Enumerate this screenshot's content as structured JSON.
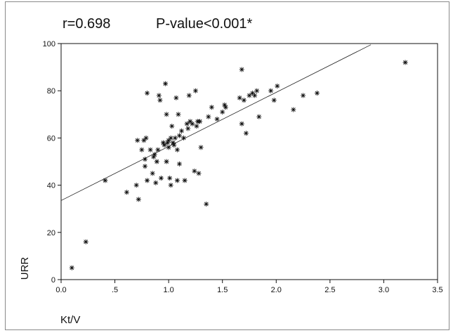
{
  "chart_data": {
    "type": "scatter",
    "annotations": [
      "r=0.698",
      "P-value<0.001*"
    ],
    "xlabel": "Kt/V",
    "ylabel": "URR",
    "xlim": [
      0.0,
      3.5
    ],
    "ylim": [
      0,
      100
    ],
    "x_ticks": [
      0.0,
      0.5,
      1.0,
      1.5,
      2.0,
      2.5,
      3.0,
      3.5
    ],
    "x_tick_labels": [
      "0.0",
      ".5",
      "1.0",
      "1.5",
      "2.0",
      "2.5",
      "3.0",
      "3.5"
    ],
    "y_ticks": [
      0,
      20,
      40,
      60,
      80,
      100
    ],
    "y_tick_labels": [
      "0",
      "20",
      "40",
      "60",
      "80",
      "100"
    ],
    "marker": "asterisk",
    "grid": false,
    "regression_line": {
      "x": [
        0.0,
        2.88
      ],
      "y": [
        33.5,
        99.5
      ]
    },
    "series": [
      {
        "points": [
          [
            0.1,
            5
          ],
          [
            0.23,
            16
          ],
          [
            0.41,
            42
          ],
          [
            0.61,
            37
          ],
          [
            0.7,
            40
          ],
          [
            0.71,
            59
          ],
          [
            0.72,
            34
          ],
          [
            0.75,
            55
          ],
          [
            0.77,
            59
          ],
          [
            0.78,
            51
          ],
          [
            0.78,
            48
          ],
          [
            0.79,
            60
          ],
          [
            0.8,
            79
          ],
          [
            0.8,
            42
          ],
          [
            0.83,
            55
          ],
          [
            0.85,
            45
          ],
          [
            0.86,
            52
          ],
          [
            0.87,
            53
          ],
          [
            0.88,
            41
          ],
          [
            0.89,
            50
          ],
          [
            0.9,
            55
          ],
          [
            0.91,
            78
          ],
          [
            0.92,
            76
          ],
          [
            0.93,
            43
          ],
          [
            0.95,
            58
          ],
          [
            0.96,
            57
          ],
          [
            0.97,
            83
          ],
          [
            0.98,
            70
          ],
          [
            0.98,
            50
          ],
          [
            0.99,
            58
          ],
          [
            1.0,
            56
          ],
          [
            1.0,
            59
          ],
          [
            1.01,
            43
          ],
          [
            1.02,
            60
          ],
          [
            1.02,
            40
          ],
          [
            1.03,
            65
          ],
          [
            1.04,
            58
          ],
          [
            1.05,
            57
          ],
          [
            1.06,
            60
          ],
          [
            1.07,
            77
          ],
          [
            1.08,
            55
          ],
          [
            1.08,
            42
          ],
          [
            1.09,
            70
          ],
          [
            1.1,
            61
          ],
          [
            1.1,
            49
          ],
          [
            1.12,
            63
          ],
          [
            1.14,
            60
          ],
          [
            1.15,
            42
          ],
          [
            1.17,
            66
          ],
          [
            1.18,
            64
          ],
          [
            1.19,
            78
          ],
          [
            1.2,
            67
          ],
          [
            1.22,
            66
          ],
          [
            1.24,
            46
          ],
          [
            1.25,
            80
          ],
          [
            1.26,
            65
          ],
          [
            1.27,
            67
          ],
          [
            1.28,
            45
          ],
          [
            1.29,
            67
          ],
          [
            1.3,
            56
          ],
          [
            1.35,
            32
          ],
          [
            1.37,
            69
          ],
          [
            1.4,
            73
          ],
          [
            1.45,
            68
          ],
          [
            1.5,
            71
          ],
          [
            1.52,
            74
          ],
          [
            1.53,
            73
          ],
          [
            1.66,
            77
          ],
          [
            1.68,
            89
          ],
          [
            1.68,
            66
          ],
          [
            1.7,
            76
          ],
          [
            1.72,
            62
          ],
          [
            1.75,
            78
          ],
          [
            1.78,
            79
          ],
          [
            1.8,
            78
          ],
          [
            1.82,
            80
          ],
          [
            1.84,
            69
          ],
          [
            1.95,
            80
          ],
          [
            1.98,
            76
          ],
          [
            2.01,
            82
          ],
          [
            2.16,
            72
          ],
          [
            2.25,
            78
          ],
          [
            2.38,
            79
          ],
          [
            3.2,
            92
          ]
        ]
      }
    ]
  }
}
